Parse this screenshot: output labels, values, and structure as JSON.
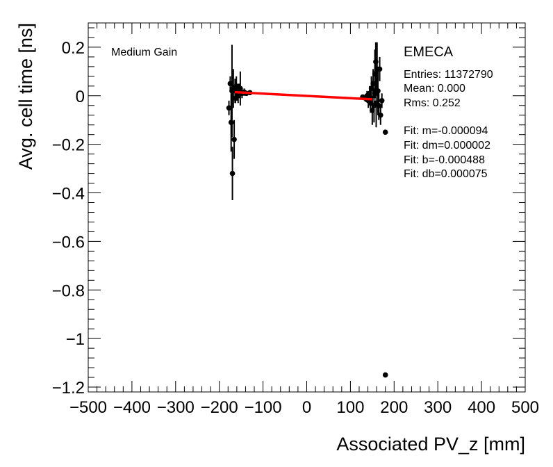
{
  "chart_data": {
    "type": "scatter",
    "title": "",
    "xlabel": "Associated PV_z [mm]",
    "ylabel": "Avg. cell time [ns]",
    "xlim": [
      -500,
      500
    ],
    "ylim": [
      -1.22,
      0.3
    ],
    "x_ticks": [
      -500,
      -400,
      -300,
      -200,
      -100,
      0,
      100,
      200,
      300,
      400,
      500
    ],
    "x_tick_labels": [
      "−500",
      "−400",
      "−300",
      "−200",
      "−100",
      "0",
      "100",
      "200",
      "300",
      "400",
      "500"
    ],
    "y_ticks": [
      0.2,
      0,
      -0.2,
      -0.4,
      -0.6,
      -0.8,
      -1,
      -1.2
    ],
    "y_tick_labels": [
      "0.2",
      "0",
      "−0.2",
      "−0.4",
      "−0.6",
      "−0.8",
      "−1",
      "−1.2"
    ],
    "grid": false,
    "gain_label": "Medium Gain",
    "region_label": "EMECA",
    "stats": [
      "Entries: 11372790",
      "Mean: 0.000",
      "Rms: 0.252",
      "Fit: m=-0.000094",
      "Fit: dm=0.000002",
      "Fit: b=-0.000488",
      "Fit: db=0.000075"
    ],
    "fit_line": {
      "x": [
        -165,
        150
      ],
      "y": [
        0.015,
        -0.0146
      ],
      "color": "#ff0000"
    },
    "marker_color": "#000000",
    "series": [
      {
        "name": "data",
        "points": [
          {
            "x": -178,
            "y": -0.05,
            "err": 0.03
          },
          {
            "x": -175,
            "y": 0.05,
            "err": 0.03
          },
          {
            "x": -173,
            "y": -0.11,
            "err": 0.12
          },
          {
            "x": -171,
            "y": 0.02,
            "err": 0.19
          },
          {
            "x": -170,
            "y": -0.32,
            "err": 0.11
          },
          {
            "x": -168,
            "y": 0.03,
            "err": 0.08
          },
          {
            "x": -166,
            "y": -0.18,
            "err": 0.08
          },
          {
            "x": -164,
            "y": 0.02,
            "err": 0.05
          },
          {
            "x": -163,
            "y": -0.01,
            "err": 0.02
          },
          {
            "x": -161,
            "y": 0.04,
            "err": 0.04
          },
          {
            "x": -159,
            "y": 0.01,
            "err": 0.03
          },
          {
            "x": -157,
            "y": 0.0,
            "err": 0.03
          },
          {
            "x": -155,
            "y": 0.02,
            "err": 0.03
          },
          {
            "x": -152,
            "y": 0.03,
            "err": 0.07
          },
          {
            "x": -148,
            "y": 0.01,
            "err": 0.02
          },
          {
            "x": -143,
            "y": 0.015,
            "err": 0.015
          },
          {
            "x": -138,
            "y": 0.01,
            "err": 0.01
          },
          {
            "x": -130,
            "y": 0.013,
            "err": 0.008
          },
          {
            "x": 128,
            "y": -0.005,
            "err": 0.008
          },
          {
            "x": 134,
            "y": -0.01,
            "err": 0.015
          },
          {
            "x": 138,
            "y": 0.0,
            "err": 0.02
          },
          {
            "x": 141,
            "y": -0.02,
            "err": 0.03
          },
          {
            "x": 144,
            "y": 0.01,
            "err": 0.03
          },
          {
            "x": 146,
            "y": -0.03,
            "err": 0.04
          },
          {
            "x": 148,
            "y": 0.03,
            "err": 0.05
          },
          {
            "x": 150,
            "y": -0.06,
            "err": 0.06
          },
          {
            "x": 152,
            "y": 0.05,
            "err": 0.06
          },
          {
            "x": 154,
            "y": -0.04,
            "err": 0.07
          },
          {
            "x": 156,
            "y": 0.09,
            "err": 0.1
          },
          {
            "x": 158,
            "y": 0.14,
            "err": 0.08
          },
          {
            "x": 159,
            "y": -0.03,
            "err": 0.1
          },
          {
            "x": 161,
            "y": 0.11,
            "err": 0.11
          },
          {
            "x": 163,
            "y": 0.02,
            "err": 0.1
          },
          {
            "x": 165,
            "y": -0.04,
            "err": 0.06
          },
          {
            "x": 167,
            "y": 0.11,
            "err": 0.05
          },
          {
            "x": 169,
            "y": -0.08,
            "err": 0.04
          },
          {
            "x": 172,
            "y": -0.02,
            "err": 0.03
          },
          {
            "x": 180,
            "y": -0.15,
            "err": 0.0
          },
          {
            "x": 180,
            "y": -1.15,
            "err": 0.0
          }
        ]
      }
    ]
  }
}
